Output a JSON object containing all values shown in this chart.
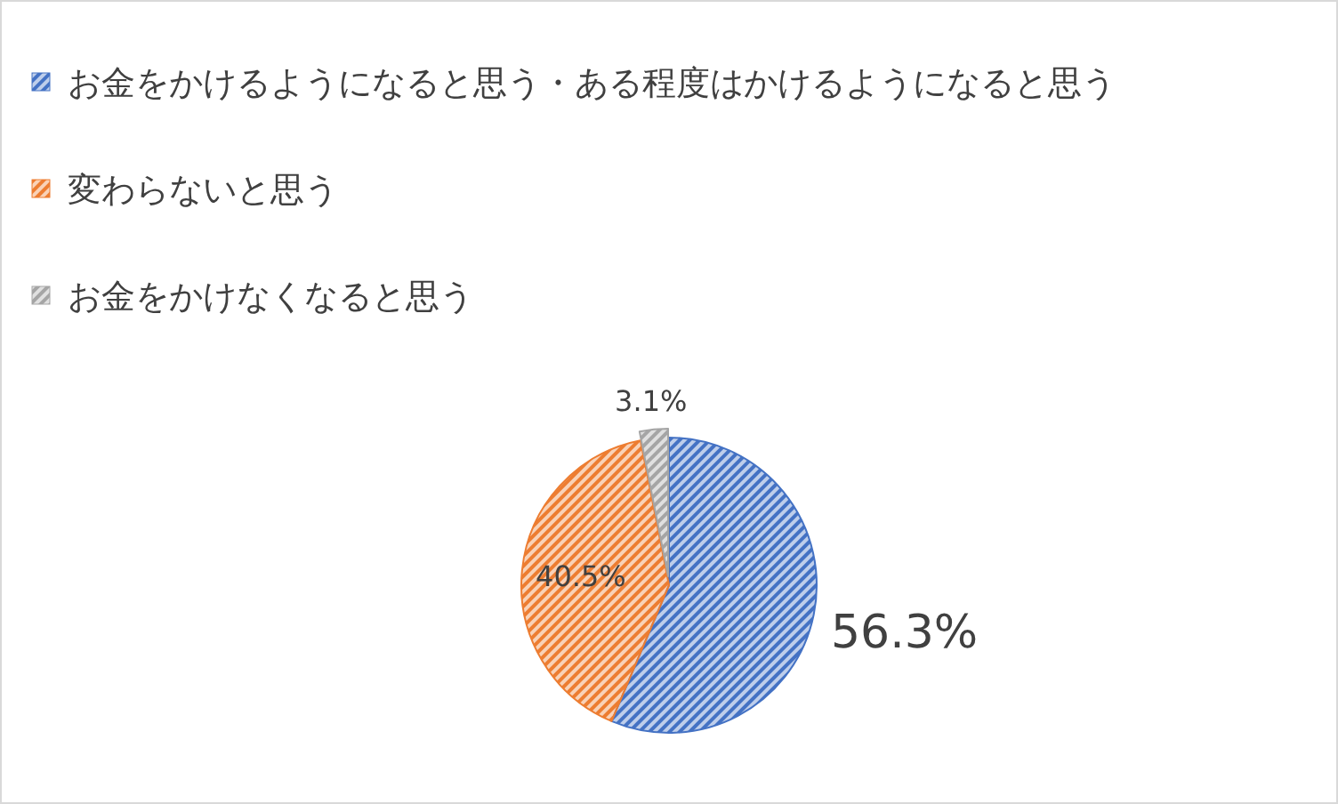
{
  "chart_data": {
    "type": "pie",
    "categories": [
      "お金をかけるようになると思う・ある程度はかけるようになると思う",
      "変わらないと思う",
      "お金をかけなくなると思う"
    ],
    "values": [
      56.3,
      40.5,
      3.1
    ],
    "value_labels": [
      "56.3%",
      "40.5%",
      "3.1%"
    ],
    "colors": [
      "#4472c4",
      "#ed7d31",
      "#a5a5a5"
    ],
    "legend": "top"
  }
}
